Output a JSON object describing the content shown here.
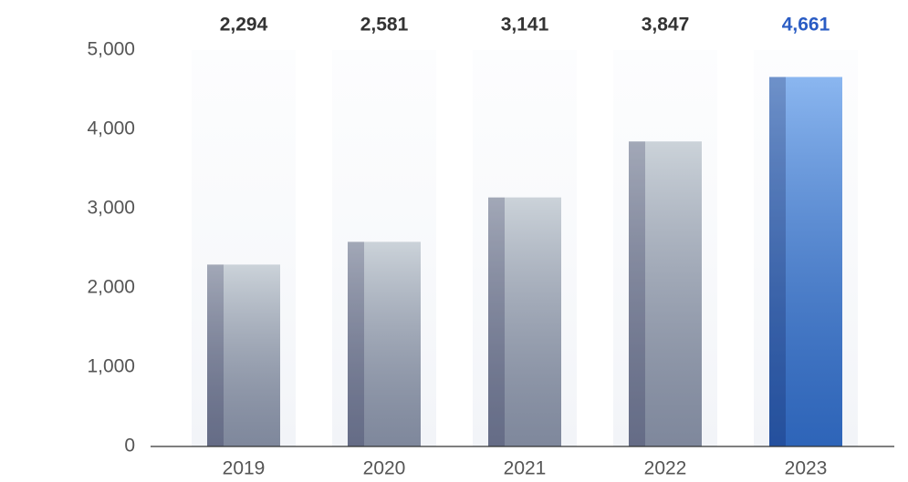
{
  "chart_data": {
    "type": "bar",
    "categories": [
      "2019",
      "2020",
      "2021",
      "2022",
      "2023"
    ],
    "values": [
      2294,
      2581,
      3141,
      3847,
      4661
    ],
    "value_labels": [
      "2,294",
      "2,581",
      "3,141",
      "3,847",
      "4,661"
    ],
    "colors": [
      "#a9b5c0",
      "#a9b5c0",
      "#a9b5c0",
      "#a9b5c0",
      "#3d86e6"
    ],
    "label_colors": [
      "#333333",
      "#333333",
      "#333333",
      "#333333",
      "#2a5cc4"
    ],
    "ylim": [
      0,
      5000
    ],
    "yticks": [
      0,
      {
        "value": 1000,
        "label": "1,000"
      },
      {
        "value": 2000,
        "label": "2,000"
      },
      {
        "value": 3000,
        "label": "3,000"
      },
      {
        "value": 4000,
        "label": "4,000"
      },
      {
        "value": 5000,
        "label": "5,000"
      }
    ],
    "grid": false
  }
}
